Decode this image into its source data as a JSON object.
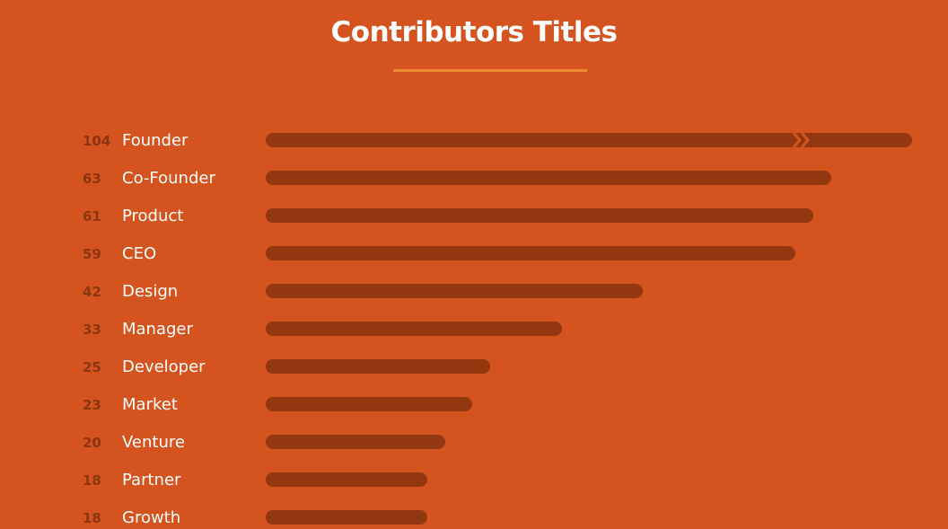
{
  "chart_data": {
    "type": "bar",
    "orientation": "horizontal",
    "title": "Contributors Titles",
    "categories": [
      "Founder",
      "Co-Founder",
      "Product",
      "CEO",
      "Design",
      "Manager",
      "Developer",
      "Market",
      "Venture",
      "Partner",
      "Growth"
    ],
    "values": [
      104,
      63,
      61,
      59,
      42,
      33,
      25,
      23,
      20,
      18,
      18
    ],
    "axis_break_on_first_bar": true,
    "grid": false,
    "legend": "none",
    "colors": {
      "background": "#D4531E",
      "bar": "#933710",
      "value_text": "#8C3511",
      "label_text": "#FFFFFF",
      "title_rule": "#EE8A32"
    }
  }
}
